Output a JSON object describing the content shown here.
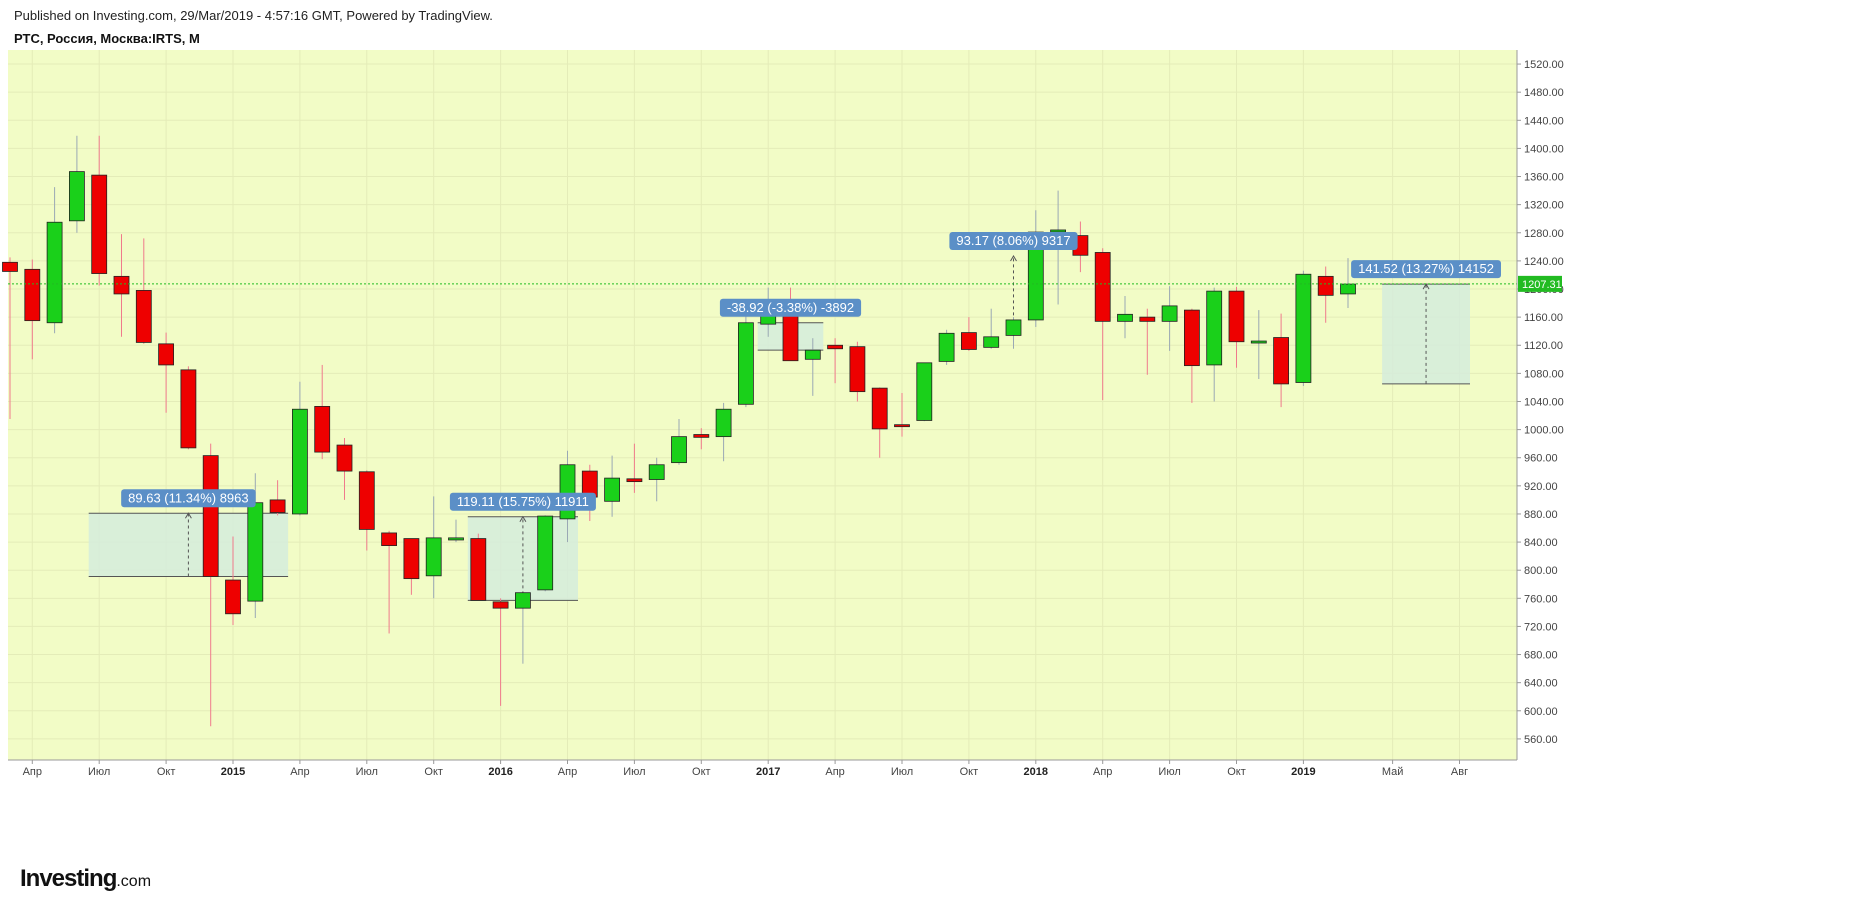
{
  "header": {
    "published": "Published on Investing.com, 29/Mar/2019 - 4:57:16 GMT, Powered by TradingView.",
    "symbol": "РТС, Россия, Москва:IRTS, M"
  },
  "logo": {
    "main": "Investing",
    "suffix": ".com"
  },
  "colors": {
    "background": "#f2fcc6",
    "up": "#1ad01a",
    "down": "#ee0000",
    "up_wick": "#9aa8b4",
    "down_wick": "#f07a8c",
    "badge": "#5b8fc7",
    "box_fill": "#d5ecdc",
    "current_price": "#22bb22"
  },
  "chart_data": {
    "type": "candlestick",
    "interval": "monthly",
    "ylim": [
      530,
      1540
    ],
    "y_ticks": [
      "560.00",
      "600.00",
      "640.00",
      "680.00",
      "720.00",
      "760.00",
      "800.00",
      "840.00",
      "880.00",
      "920.00",
      "960.00",
      "1000.00",
      "1040.00",
      "1080.00",
      "1120.00",
      "1160.00",
      "1200.00",
      "1240.00",
      "1280.00",
      "1320.00",
      "1360.00",
      "1400.00",
      "1440.00",
      "1480.00",
      "1520.00"
    ],
    "x_labels": [
      {
        "label": "Апр",
        "index": 1,
        "year": false
      },
      {
        "label": "Июл",
        "index": 4,
        "year": false
      },
      {
        "label": "Окт",
        "index": 7,
        "year": false
      },
      {
        "label": "2015",
        "index": 10,
        "year": true
      },
      {
        "label": "Апр",
        "index": 13,
        "year": false
      },
      {
        "label": "Июл",
        "index": 16,
        "year": false
      },
      {
        "label": "Окт",
        "index": 19,
        "year": false
      },
      {
        "label": "2016",
        "index": 22,
        "year": true
      },
      {
        "label": "Апр",
        "index": 25,
        "year": false
      },
      {
        "label": "Июл",
        "index": 28,
        "year": false
      },
      {
        "label": "Окт",
        "index": 31,
        "year": false
      },
      {
        "label": "2017",
        "index": 34,
        "year": true
      },
      {
        "label": "Апр",
        "index": 37,
        "year": false
      },
      {
        "label": "Июл",
        "index": 40,
        "year": false
      },
      {
        "label": "Окт",
        "index": 43,
        "year": false
      },
      {
        "label": "2018",
        "index": 46,
        "year": true
      },
      {
        "label": "Апр",
        "index": 49,
        "year": false
      },
      {
        "label": "Июл",
        "index": 52,
        "year": false
      },
      {
        "label": "Окт",
        "index": 55,
        "year": false
      },
      {
        "label": "2019",
        "index": 58,
        "year": true
      },
      {
        "label": "Май",
        "index": 62,
        "year": false
      },
      {
        "label": "Авг",
        "index": 65,
        "year": false
      }
    ],
    "candles": [
      {
        "date": "2014-03",
        "o": 1238,
        "h": 1245,
        "l": 1015,
        "c": 1225
      },
      {
        "date": "2014-04",
        "o": 1228,
        "h": 1242,
        "l": 1100,
        "c": 1155
      },
      {
        "date": "2014-05",
        "o": 1152,
        "h": 1345,
        "l": 1137,
        "c": 1295
      },
      {
        "date": "2014-06",
        "o": 1297,
        "h": 1418,
        "l": 1280,
        "c": 1367
      },
      {
        "date": "2014-07",
        "o": 1362,
        "h": 1418,
        "l": 1205,
        "c": 1222
      },
      {
        "date": "2014-08",
        "o": 1218,
        "h": 1278,
        "l": 1132,
        "c": 1193
      },
      {
        "date": "2014-09",
        "o": 1198,
        "h": 1272,
        "l": 1122,
        "c": 1124
      },
      {
        "date": "2014-10",
        "o": 1122,
        "h": 1138,
        "l": 1024,
        "c": 1092
      },
      {
        "date": "2014-11",
        "o": 1085,
        "h": 1090,
        "l": 972,
        "c": 974
      },
      {
        "date": "2014-12",
        "o": 963,
        "h": 980,
        "l": 578,
        "c": 791
      },
      {
        "date": "2015-01",
        "o": 786,
        "h": 848,
        "l": 722,
        "c": 738
      },
      {
        "date": "2015-02",
        "o": 756,
        "h": 938,
        "l": 732,
        "c": 896
      },
      {
        "date": "2015-03",
        "o": 900,
        "h": 928,
        "l": 878,
        "c": 882
      },
      {
        "date": "2015-04",
        "o": 880,
        "h": 1068,
        "l": 878,
        "c": 1029
      },
      {
        "date": "2015-05",
        "o": 1033,
        "h": 1092,
        "l": 958,
        "c": 968
      },
      {
        "date": "2015-06",
        "o": 978,
        "h": 988,
        "l": 900,
        "c": 941
      },
      {
        "date": "2015-07",
        "o": 940,
        "h": 942,
        "l": 828,
        "c": 858
      },
      {
        "date": "2015-08",
        "o": 853,
        "h": 856,
        "l": 710,
        "c": 835
      },
      {
        "date": "2015-09",
        "o": 845,
        "h": 845,
        "l": 765,
        "c": 788
      },
      {
        "date": "2015-10",
        "o": 792,
        "h": 905,
        "l": 760,
        "c": 846
      },
      {
        "date": "2015-11",
        "o": 843,
        "h": 872,
        "l": 840,
        "c": 846
      },
      {
        "date": "2015-12",
        "o": 845,
        "h": 852,
        "l": 757,
        "c": 757
      },
      {
        "date": "2016-01",
        "o": 755,
        "h": 760,
        "l": 607,
        "c": 746
      },
      {
        "date": "2016-02",
        "o": 746,
        "h": 768,
        "l": 667,
        "c": 768
      },
      {
        "date": "2016-03",
        "o": 772,
        "h": 878,
        "l": 770,
        "c": 877
      },
      {
        "date": "2016-04",
        "o": 873,
        "h": 970,
        "l": 840,
        "c": 950
      },
      {
        "date": "2016-05",
        "o": 941,
        "h": 950,
        "l": 870,
        "c": 904
      },
      {
        "date": "2016-06",
        "o": 898,
        "h": 963,
        "l": 876,
        "c": 931
      },
      {
        "date": "2016-07",
        "o": 930,
        "h": 980,
        "l": 910,
        "c": 926
      },
      {
        "date": "2016-08",
        "o": 929,
        "h": 960,
        "l": 898,
        "c": 950
      },
      {
        "date": "2016-09",
        "o": 953,
        "h": 1015,
        "l": 950,
        "c": 990
      },
      {
        "date": "2016-10",
        "o": 993,
        "h": 1002,
        "l": 972,
        "c": 989
      },
      {
        "date": "2016-11",
        "o": 990,
        "h": 1038,
        "l": 955,
        "c": 1029
      },
      {
        "date": "2016-12",
        "o": 1036,
        "h": 1172,
        "l": 1032,
        "c": 1152
      },
      {
        "date": "2017-01",
        "o": 1150,
        "h": 1202,
        "l": 1132,
        "c": 1166
      },
      {
        "date": "2017-02",
        "o": 1162,
        "h": 1202,
        "l": 1102,
        "c": 1098
      },
      {
        "date": "2017-03",
        "o": 1100,
        "h": 1130,
        "l": 1048,
        "c": 1113
      },
      {
        "date": "2017-04",
        "o": 1120,
        "h": 1130,
        "l": 1066,
        "c": 1115
      },
      {
        "date": "2017-05",
        "o": 1118,
        "h": 1125,
        "l": 1040,
        "c": 1054
      },
      {
        "date": "2017-06",
        "o": 1059,
        "h": 1060,
        "l": 960,
        "c": 1001
      },
      {
        "date": "2017-07",
        "o": 1007,
        "h": 1052,
        "l": 990,
        "c": 1006
      },
      {
        "date": "2017-08",
        "o": 1013,
        "h": 1095,
        "l": 1012,
        "c": 1095
      },
      {
        "date": "2017-09",
        "o": 1097,
        "h": 1142,
        "l": 1092,
        "c": 1137
      },
      {
        "date": "2017-10",
        "o": 1138,
        "h": 1160,
        "l": 1112,
        "c": 1114
      },
      {
        "date": "2017-11",
        "o": 1117,
        "h": 1172,
        "l": 1115,
        "c": 1132
      },
      {
        "date": "2017-12",
        "o": 1134,
        "h": 1160,
        "l": 1115,
        "c": 1156
      },
      {
        "date": "2018-01",
        "o": 1156,
        "h": 1312,
        "l": 1146,
        "c": 1281
      },
      {
        "date": "2018-02",
        "o": 1283,
        "h": 1340,
        "l": 1178,
        "c": 1284
      },
      {
        "date": "2018-03",
        "o": 1276,
        "h": 1296,
        "l": 1224,
        "c": 1248
      },
      {
        "date": "2018-04",
        "o": 1252,
        "h": 1258,
        "l": 1042,
        "c": 1154
      },
      {
        "date": "2018-05",
        "o": 1154,
        "h": 1190,
        "l": 1130,
        "c": 1164
      },
      {
        "date": "2018-06",
        "o": 1160,
        "h": 1172,
        "l": 1078,
        "c": 1154
      },
      {
        "date": "2018-07",
        "o": 1154,
        "h": 1204,
        "l": 1112,
        "c": 1176
      },
      {
        "date": "2018-08",
        "o": 1170,
        "h": 1172,
        "l": 1038,
        "c": 1091
      },
      {
        "date": "2018-09",
        "o": 1092,
        "h": 1202,
        "l": 1040,
        "c": 1197
      },
      {
        "date": "2018-10",
        "o": 1197,
        "h": 1203,
        "l": 1088,
        "c": 1125
      },
      {
        "date": "2018-11",
        "o": 1124,
        "h": 1170,
        "l": 1072,
        "c": 1126
      },
      {
        "date": "2018-12",
        "o": 1131,
        "h": 1165,
        "l": 1032,
        "c": 1065
      },
      {
        "date": "2019-01",
        "o": 1067,
        "h": 1226,
        "l": 1062,
        "c": 1221
      },
      {
        "date": "2019-02",
        "o": 1218,
        "h": 1232,
        "l": 1152,
        "c": 1191
      },
      {
        "date": "2019-03",
        "o": 1193,
        "h": 1244,
        "l": 1173,
        "c": 1207
      }
    ],
    "current_price": {
      "value": 1207.31,
      "label": "1207.31"
    },
    "annotations": [
      {
        "type": "range",
        "text": "89.63 (11.34%) 8963",
        "x_start": 4,
        "x_end": 12,
        "y_low": 791,
        "y_high": 881
      },
      {
        "type": "range",
        "text": "119.11 (15.75%) 11911",
        "x_start": 21,
        "x_end": 25,
        "y_low": 757,
        "y_high": 876
      },
      {
        "type": "range",
        "text": "-38.92 (-3.38%) -3892",
        "x_start": 34,
        "x_end": 36,
        "y_low": 1113,
        "y_high": 1152
      },
      {
        "type": "arrow",
        "text": "93.17 (8.06%) 9317",
        "x_start": 45,
        "x_end": 45,
        "y_low": 1154,
        "y_high": 1247
      },
      {
        "type": "range",
        "text": "141.52 (13.27%) 14152",
        "x_start": 62,
        "x_end": 65,
        "y_low": 1065,
        "y_high": 1207
      }
    ]
  }
}
